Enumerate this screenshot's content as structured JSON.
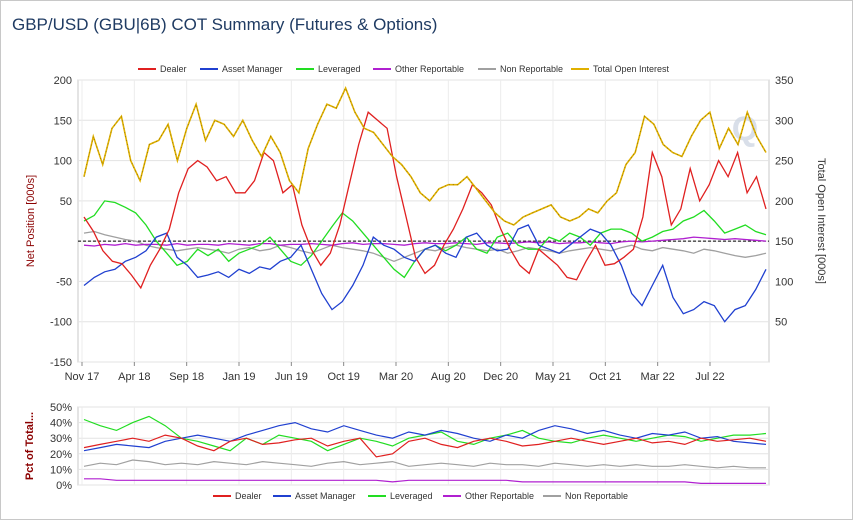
{
  "title": "GBP/USD (GBU|6B) COT Summary (Futures & Options)",
  "watermark": "Q",
  "chart_data": [
    {
      "type": "line",
      "x_ticks": [
        "Nov 17",
        "Apr 18",
        "Sep 18",
        "Jan 19",
        "Jun 19",
        "Oct 19",
        "Mar 20",
        "Aug 20",
        "Dec 20",
        "May 21",
        "Oct 21",
        "Mar 22",
        "Jul 22"
      ],
      "ylabel": "Net Position [000s]",
      "ylabel_right": "Total Open Interest [000s]",
      "ylim": [
        -150,
        200
      ],
      "ylim_right": [
        0,
        350
      ],
      "y_ticks": [
        "200",
        "150",
        "100",
        "50",
        "-50",
        "-100",
        "-150"
      ],
      "y_ticks_right": [
        "350",
        "300",
        "250",
        "200",
        "150",
        "100",
        "50"
      ],
      "legend_position": "top",
      "grid": true,
      "zero_line": "dashed",
      "colors": {
        "dealer": "#e02020",
        "asset_manager": "#2040d0",
        "leveraged": "#22dd22",
        "other_reportable": "#b020d0",
        "non_reportable": "#a0a0a0",
        "total_oi": "#e0b000"
      },
      "series": [
        {
          "name": "Dealer",
          "axis": "left",
          "values": [
            30,
            12,
            -12,
            -25,
            -28,
            -42,
            -58,
            -30,
            -10,
            15,
            60,
            90,
            100,
            92,
            75,
            80,
            60,
            60,
            75,
            110,
            100,
            60,
            70,
            20,
            -10,
            -30,
            -15,
            20,
            70,
            120,
            160,
            150,
            140,
            80,
            30,
            -20,
            -40,
            -30,
            -5,
            15,
            40,
            70,
            60,
            45,
            15,
            -10,
            -30,
            -40,
            -10,
            -20,
            -30,
            -45,
            -48,
            -25,
            -5,
            -30,
            -28,
            -20,
            -10,
            30,
            110,
            80,
            20,
            40,
            90,
            50,
            70,
            100,
            80,
            110,
            60,
            80,
            40
          ]
        },
        {
          "name": "Asset Manager",
          "axis": "left",
          "values": [
            -55,
            -45,
            -38,
            -35,
            -25,
            -20,
            -12,
            5,
            10,
            -20,
            -30,
            -45,
            -42,
            -38,
            -45,
            -35,
            -40,
            -32,
            -35,
            -25,
            -20,
            -5,
            -35,
            -65,
            -85,
            -75,
            -55,
            -30,
            5,
            -5,
            -10,
            -20,
            -25,
            -10,
            -5,
            -15,
            -20,
            5,
            10,
            -5,
            -12,
            -10,
            15,
            20,
            -5,
            -10,
            -15,
            -5,
            5,
            15,
            10,
            -5,
            -30,
            -65,
            -80,
            -55,
            -30,
            -70,
            -90,
            -85,
            -75,
            -80,
            -100,
            -85,
            -80,
            -60,
            -35
          ]
        },
        {
          "name": "Leveraged",
          "axis": "left",
          "values": [
            25,
            32,
            50,
            48,
            42,
            35,
            20,
            0,
            -15,
            -30,
            -25,
            -10,
            -18,
            -10,
            -25,
            -15,
            -10,
            -5,
            5,
            -10,
            -25,
            -30,
            -18,
            0,
            18,
            35,
            25,
            10,
            -5,
            -20,
            -35,
            -45,
            -25,
            -10,
            -5,
            -12,
            -5,
            5,
            -10,
            -15,
            5,
            10,
            -5,
            -10,
            -10,
            5,
            0,
            10,
            5,
            -5,
            10,
            15,
            15,
            10,
            0,
            5,
            12,
            15,
            25,
            30,
            38,
            25,
            10,
            15,
            20,
            12,
            8
          ]
        },
        {
          "name": "Other Reportable",
          "axis": "left",
          "values": [
            -5,
            -6,
            -4,
            -5,
            -3,
            -5,
            -4,
            -4,
            -5,
            -3,
            -5,
            -4,
            -4,
            -5,
            -3,
            -4,
            -5,
            -3,
            -3,
            -5,
            -4,
            -4,
            -3,
            -4,
            -5,
            -3,
            -2,
            -4,
            -3,
            -3,
            -4,
            -5,
            -3,
            -2,
            -3,
            -3,
            -2,
            -3,
            -4,
            -2,
            -2,
            -3,
            -2,
            -1,
            -2,
            -1,
            -3,
            -2,
            -2,
            -1,
            -2,
            -3,
            -1,
            0,
            -1,
            0,
            1,
            2,
            3,
            5,
            4,
            3,
            2,
            3,
            2,
            1,
            0
          ]
        },
        {
          "name": "Non Reportable",
          "axis": "left",
          "values": [
            10,
            12,
            8,
            5,
            2,
            0,
            -5,
            -8,
            -10,
            -12,
            -10,
            -8,
            -10,
            -12,
            -15,
            -10,
            -8,
            -12,
            -10,
            -5,
            -8,
            -12,
            -15,
            -10,
            -5,
            -8,
            -10,
            -12,
            -15,
            -20,
            -25,
            -20,
            -15,
            -10,
            -12,
            -8,
            -5,
            -8,
            -10,
            -12,
            -10,
            -15,
            -12,
            -8,
            -10,
            -12,
            -15,
            -12,
            -10,
            -8,
            -10,
            -12,
            -8,
            -5,
            -10,
            -12,
            -8,
            -10,
            -12,
            -15,
            -10,
            -12,
            -15,
            -18,
            -20,
            -18,
            -15
          ]
        },
        {
          "name": "Total Open Interest",
          "axis": "right",
          "values": [
            230,
            280,
            245,
            290,
            305,
            250,
            225,
            270,
            275,
            295,
            250,
            290,
            320,
            275,
            300,
            295,
            280,
            300,
            275,
            255,
            280,
            260,
            225,
            210,
            265,
            295,
            320,
            315,
            340,
            310,
            290,
            285,
            270,
            255,
            245,
            230,
            210,
            200,
            215,
            220,
            220,
            230,
            215,
            200,
            185,
            175,
            170,
            180,
            185,
            190,
            195,
            180,
            175,
            180,
            190,
            185,
            200,
            210,
            245,
            260,
            305,
            295,
            270,
            260,
            255,
            280,
            300,
            310,
            265,
            290,
            270,
            310,
            280,
            260
          ]
        }
      ]
    },
    {
      "type": "line",
      "ylabel": "Pct of Total...",
      "ylim": [
        0,
        50
      ],
      "y_ticks": [
        "50%",
        "40%",
        "30%",
        "20%",
        "10%",
        "0%"
      ],
      "legend_position": "bottom",
      "grid": true,
      "series": [
        {
          "name": "Dealer",
          "values": [
            24,
            26,
            28,
            30,
            28,
            32,
            30,
            25,
            22,
            28,
            30,
            26,
            27,
            29,
            30,
            25,
            28,
            30,
            18,
            20,
            28,
            30,
            26,
            24,
            28,
            30,
            28,
            25,
            26,
            28,
            30,
            28,
            26,
            28,
            30,
            27,
            28,
            26,
            30,
            28,
            29,
            30,
            28
          ]
        },
        {
          "name": "Asset Manager",
          "values": [
            22,
            24,
            26,
            25,
            24,
            28,
            30,
            32,
            30,
            28,
            32,
            35,
            38,
            40,
            36,
            34,
            38,
            35,
            32,
            30,
            34,
            32,
            35,
            33,
            30,
            28,
            32,
            30,
            35,
            38,
            36,
            33,
            35,
            32,
            30,
            33,
            32,
            34,
            30,
            31,
            28,
            27,
            26
          ]
        },
        {
          "name": "Leveraged",
          "values": [
            42,
            38,
            35,
            40,
            44,
            38,
            30,
            28,
            25,
            22,
            30,
            26,
            32,
            30,
            28,
            22,
            26,
            30,
            28,
            25,
            30,
            32,
            34,
            28,
            26,
            30,
            32,
            35,
            30,
            28,
            27,
            30,
            32,
            30,
            28,
            30,
            32,
            31,
            28,
            30,
            32,
            32,
            33
          ]
        },
        {
          "name": "Other Reportable",
          "values": [
            4,
            4,
            3,
            3,
            3,
            3,
            3,
            3,
            3,
            3,
            3,
            3,
            3,
            3,
            3,
            3,
            3,
            3,
            3,
            2,
            3,
            3,
            3,
            3,
            3,
            3,
            3,
            2,
            2,
            2,
            2,
            2,
            2,
            2,
            2,
            2,
            2,
            2,
            1,
            1,
            1,
            1,
            1
          ]
        },
        {
          "name": "Non Reportable",
          "values": [
            12,
            14,
            13,
            16,
            15,
            13,
            14,
            13,
            15,
            14,
            13,
            15,
            14,
            13,
            12,
            14,
            15,
            13,
            14,
            15,
            12,
            13,
            14,
            13,
            12,
            14,
            13,
            13,
            12,
            14,
            13,
            12,
            13,
            12,
            13,
            12,
            12,
            13,
            12,
            11,
            12,
            11,
            11
          ]
        }
      ]
    }
  ]
}
